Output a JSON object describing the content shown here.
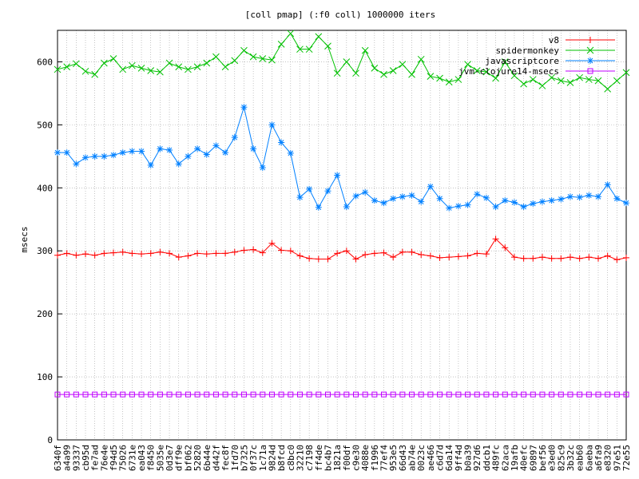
{
  "chart_data": {
    "type": "line",
    "title": "[coll pmap] (:f0 coll) 1000000 iters",
    "y_label": "msecs",
    "categories": [
      "6340f",
      "a4a99",
      "93337",
      "cb95d",
      "fe7ad",
      "76e4e",
      "f94d5",
      "75026",
      "6731e",
      "ea043",
      "f8450",
      "5035e",
      "0d3e7",
      "dff9e",
      "bf062",
      "52820",
      "6b44e",
      "d442f",
      "fec8f",
      "1fd70",
      "b7325",
      "0f37c",
      "1c71a",
      "9824d",
      "b8fcd",
      "c8bc0",
      "32210",
      "c7198",
      "ff4de",
      "bc4b7",
      "1821a",
      "f00df",
      "c9e30",
      "4088e",
      "f1996",
      "77ef4",
      "953e5",
      "66d43",
      "ab74e",
      "0023c",
      "ae466",
      "c6d7d",
      "6da14",
      "9ff4d",
      "b0a39",
      "927d6",
      "ddcb1",
      "489fc",
      "62aca",
      "19afb",
      "40efc",
      "69897",
      "bef56",
      "e3ed0",
      "825c9",
      "3b32c",
      "eab60",
      "6aeba",
      "a6fa9",
      "e8320",
      "97e51",
      "72e55"
    ],
    "series": [
      {
        "name": "v8",
        "color": "#ff0000",
        "marker": "plus",
        "values": [
          293,
          296,
          293,
          295,
          293,
          296,
          297,
          298,
          296,
          295,
          296,
          298,
          296,
          290,
          292,
          296,
          295,
          296,
          296,
          298,
          301,
          302,
          297,
          312,
          301,
          300,
          292,
          288,
          287,
          287,
          296,
          300,
          287,
          294,
          296,
          297,
          290,
          298,
          298,
          294,
          292,
          289,
          290,
          291,
          292,
          296,
          295,
          319,
          305,
          290,
          288,
          288,
          290,
          288,
          288,
          290,
          288,
          290,
          288,
          292,
          286,
          289
        ]
      },
      {
        "name": "spidermonkey",
        "color": "#00c000",
        "marker": "cross",
        "values": [
          588,
          592,
          597,
          585,
          580,
          598,
          605,
          588,
          594,
          590,
          586,
          584,
          598,
          592,
          588,
          592,
          598,
          608,
          592,
          602,
          618,
          608,
          605,
          603,
          628,
          645,
          620,
          620,
          640,
          625,
          582,
          600,
          582,
          618,
          590,
          580,
          586,
          596,
          580,
          604,
          577,
          574,
          568,
          572,
          596,
          586,
          584,
          574,
          600,
          578,
          565,
          572,
          562,
          575,
          570,
          567,
          575,
          572,
          570,
          557,
          570,
          583
        ]
      },
      {
        "name": "javascriptcore",
        "color": "#0080ff",
        "marker": "star",
        "values": [
          456,
          456,
          438,
          448,
          450,
          450,
          452,
          456,
          458,
          458,
          436,
          462,
          460,
          438,
          450,
          462,
          453,
          467,
          456,
          480,
          528,
          462,
          432,
          500,
          472,
          455,
          385,
          398,
          369,
          395,
          420,
          370,
          387,
          393,
          380,
          376,
          383,
          386,
          388,
          378,
          402,
          383,
          368,
          371,
          373,
          390,
          384,
          370,
          380,
          377,
          370,
          375,
          378,
          380,
          382,
          386,
          385,
          388,
          386,
          405,
          383,
          376
        ]
      },
      {
        "name": "jvm-clojure14-msecs",
        "color": "#c000ff",
        "marker": "square",
        "values": [
          72,
          72,
          72,
          72,
          72,
          72,
          72,
          72,
          72,
          72,
          72,
          72,
          72,
          72,
          72,
          72,
          72,
          72,
          72,
          72,
          72,
          72,
          72,
          72,
          72,
          72,
          72,
          72,
          72,
          72,
          72,
          72,
          72,
          72,
          72,
          72,
          72,
          72,
          72,
          72,
          72,
          72,
          72,
          72,
          72,
          72,
          72,
          72,
          72,
          72,
          72,
          72,
          72,
          72,
          72,
          72,
          72,
          72,
          72,
          72,
          72,
          72
        ]
      }
    ],
    "ylim": [
      0,
      650
    ],
    "yticks": [
      0,
      100,
      200,
      300,
      400,
      500,
      600
    ],
    "grid": true,
    "legend": "top-right"
  }
}
